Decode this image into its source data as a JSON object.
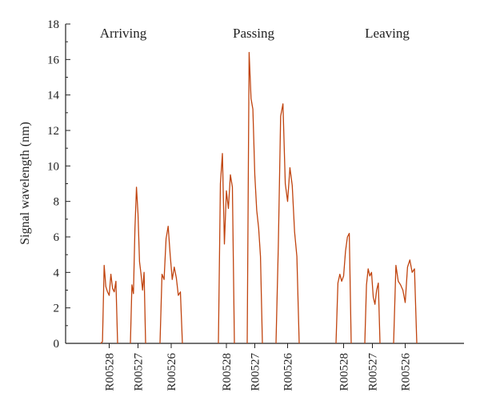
{
  "chart_data": {
    "type": "line",
    "ylabel": "Signal wavelength (nm)",
    "xlabel": "",
    "ylim": [
      0,
      18
    ],
    "yticks": [
      "0",
      "2",
      "4",
      "6",
      "8",
      "10",
      "12",
      "14",
      "16",
      "18"
    ],
    "color": "#c0440f",
    "grid": false,
    "groups": [
      {
        "name": "Arriving",
        "series": [
          {
            "name": "R00528",
            "values": [
              0,
              0.1,
              4.4,
              3.2,
              2.9,
              2.7,
              3.9,
              3.1,
              2.9,
              3.5,
              0
            ]
          },
          {
            "name": "R00527",
            "values": [
              0,
              3.3,
              2.8,
              6.5,
              8.8,
              7.3,
              4.6,
              3.9,
              3.0,
              4.0,
              0
            ]
          },
          {
            "name": "R00526",
            "values": [
              0,
              3.9,
              3.6,
              5.9,
              6.6,
              5.0,
              3.6,
              4.3,
              3.7,
              2.7,
              2.9,
              0
            ]
          }
        ]
      },
      {
        "name": "Passing",
        "series": [
          {
            "name": "R00528",
            "values": [
              0,
              9.0,
              10.7,
              5.6,
              8.6,
              7.6,
              9.5,
              8.8,
              0
            ]
          },
          {
            "name": "R00527",
            "values": [
              0,
              16.4,
              13.8,
              13.2,
              9.5,
              7.5,
              6.5,
              4.9,
              0
            ]
          },
          {
            "name": "R00526",
            "values": [
              0,
              5.5,
              12.8,
              13.5,
              9.0,
              8.0,
              9.9,
              8.9,
              6.3,
              4.9,
              0
            ]
          }
        ]
      },
      {
        "name": "Leaving",
        "series": [
          {
            "name": "R00528",
            "values": [
              0,
              3.4,
              3.9,
              3.5,
              3.8,
              5.2,
              6.0,
              6.2,
              0
            ]
          },
          {
            "name": "R00527",
            "values": [
              0,
              3.3,
              4.2,
              3.8,
              4.0,
              2.6,
              2.2,
              3.0,
              3.4,
              0
            ]
          },
          {
            "name": "R00526",
            "values": [
              0,
              4.4,
              3.5,
              3.3,
              3.0,
              2.3,
              4.3,
              4.7,
              4.0,
              4.2,
              0
            ]
          }
        ]
      }
    ]
  }
}
